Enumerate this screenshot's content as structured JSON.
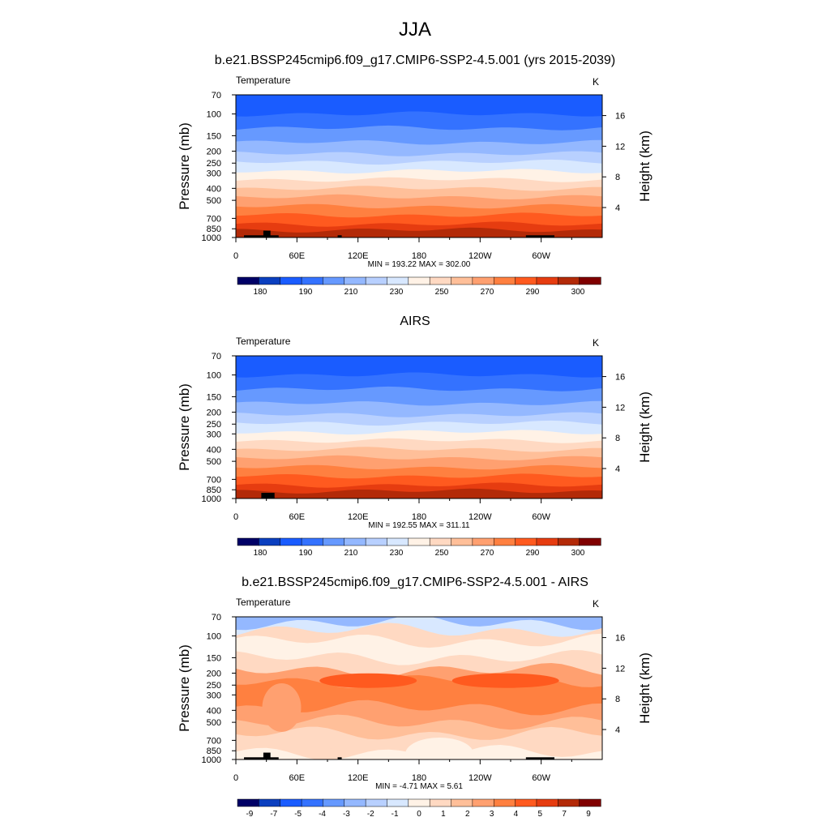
{
  "figure": {
    "title": "JJA"
  },
  "colormaps": {
    "absolute": [
      "#000066",
      "#0b3fbf",
      "#1a5cff",
      "#3472ff",
      "#6699ff",
      "#94b8ff",
      "#b8d0ff",
      "#d8e8ff",
      "#fff2e6",
      "#ffd9c2",
      "#ffbf99",
      "#ffa070",
      "#ff8040",
      "#ff5a1f",
      "#e63c10",
      "#b32a08",
      "#800000"
    ],
    "difference": [
      "#000066",
      "#0b3fbf",
      "#1a5cff",
      "#3472ff",
      "#6699ff",
      "#94b8ff",
      "#b8d0ff",
      "#d8e8ff",
      "#fff2e6",
      "#ffd9c2",
      "#ffbf99",
      "#ffa070",
      "#ff8040",
      "#ff5a1f",
      "#e63c10",
      "#b32a08",
      "#800000"
    ],
    "topography": "#000000"
  },
  "chart_data": [
    {
      "type": "heatmap",
      "title": "b.e21.BSSP245cmip6.f09_g17.CMIP6-SSP2-4.5.001 (yrs 2015-2039)",
      "variable": "Temperature",
      "units": "K",
      "ylabel": "Pressure (mb)",
      "ylabel_right": "Height (km)",
      "x_ticks": [
        "0",
        "60E",
        "120E",
        "180",
        "120W",
        "60W"
      ],
      "y_ticks": [
        "70",
        "100",
        "150",
        "200",
        "250",
        "300",
        "400",
        "500",
        "700",
        "850",
        "1000"
      ],
      "y_ticks_right": [
        "16",
        "12",
        "8",
        "4"
      ],
      "ylim": [
        1000,
        70
      ],
      "xlim": [
        0,
        360
      ],
      "stats": "MIN = 193.22  MAX = 302.00",
      "min": 193.22,
      "max": 302.0,
      "colorbar_labels": [
        "180",
        "190",
        "210",
        "230",
        "250",
        "270",
        "290",
        "300"
      ],
      "band_pressures": [
        70,
        100,
        130,
        170,
        210,
        245,
        290,
        340,
        400,
        470,
        560,
        660,
        780,
        870,
        930,
        1000
      ],
      "band_color_index": [
        2,
        3,
        4,
        5,
        6,
        7,
        8,
        9,
        10,
        11,
        12,
        13,
        14,
        15,
        15
      ]
    },
    {
      "type": "heatmap",
      "title": "AIRS",
      "variable": "Temperature",
      "units": "K",
      "ylabel": "Pressure (mb)",
      "ylabel_right": "Height (km)",
      "x_ticks": [
        "0",
        "60E",
        "120E",
        "180",
        "120W",
        "60W"
      ],
      "y_ticks": [
        "70",
        "100",
        "150",
        "200",
        "250",
        "300",
        "400",
        "500",
        "700",
        "850",
        "1000"
      ],
      "y_ticks_right": [
        "16",
        "12",
        "8",
        "4"
      ],
      "ylim": [
        1000,
        70
      ],
      "xlim": [
        0,
        360
      ],
      "stats": "MIN = 192.55  MAX = 311.11",
      "min": 192.55,
      "max": 311.11,
      "colorbar_labels": [
        "180",
        "190",
        "210",
        "230",
        "250",
        "270",
        "290",
        "300"
      ],
      "band_pressures": [
        70,
        100,
        130,
        170,
        210,
        245,
        290,
        340,
        400,
        470,
        560,
        660,
        780,
        870,
        930,
        1000
      ],
      "band_color_index": [
        2,
        3,
        4,
        5,
        6,
        7,
        8,
        9,
        10,
        11,
        12,
        13,
        14,
        15,
        15
      ]
    },
    {
      "type": "heatmap",
      "title": "b.e21.BSSP245cmip6.f09_g17.CMIP6-SSP2-4.5.001 - AIRS",
      "variable": "Temperature",
      "units": "K",
      "ylabel": "Pressure (mb)",
      "ylabel_right": "Height (km)",
      "x_ticks": [
        "0",
        "60E",
        "120E",
        "180",
        "120W",
        "60W"
      ],
      "y_ticks": [
        "70",
        "100",
        "150",
        "200",
        "250",
        "300",
        "400",
        "500",
        "700",
        "850",
        "1000"
      ],
      "y_ticks_right": [
        "16",
        "12",
        "8",
        "4"
      ],
      "ylim": [
        1000,
        70
      ],
      "xlim": [
        0,
        360
      ],
      "stats": "MIN =  -4.71  MAX =   5.61",
      "min": -4.71,
      "max": 5.61,
      "colorbar_labels": [
        "-9",
        "-7",
        "-5",
        "-4",
        "-3",
        "-2",
        "-1",
        "0",
        "1",
        "2",
        "3",
        "4",
        "5",
        "7",
        "9"
      ],
      "band_pressures": [
        70,
        78,
        90,
        110,
        150,
        190,
        230,
        290,
        380,
        500,
        620,
        760,
        880,
        1000
      ],
      "band_color_index": [
        5,
        7,
        9,
        8,
        9,
        11,
        12,
        12,
        11,
        10,
        9,
        9,
        8
      ]
    }
  ]
}
